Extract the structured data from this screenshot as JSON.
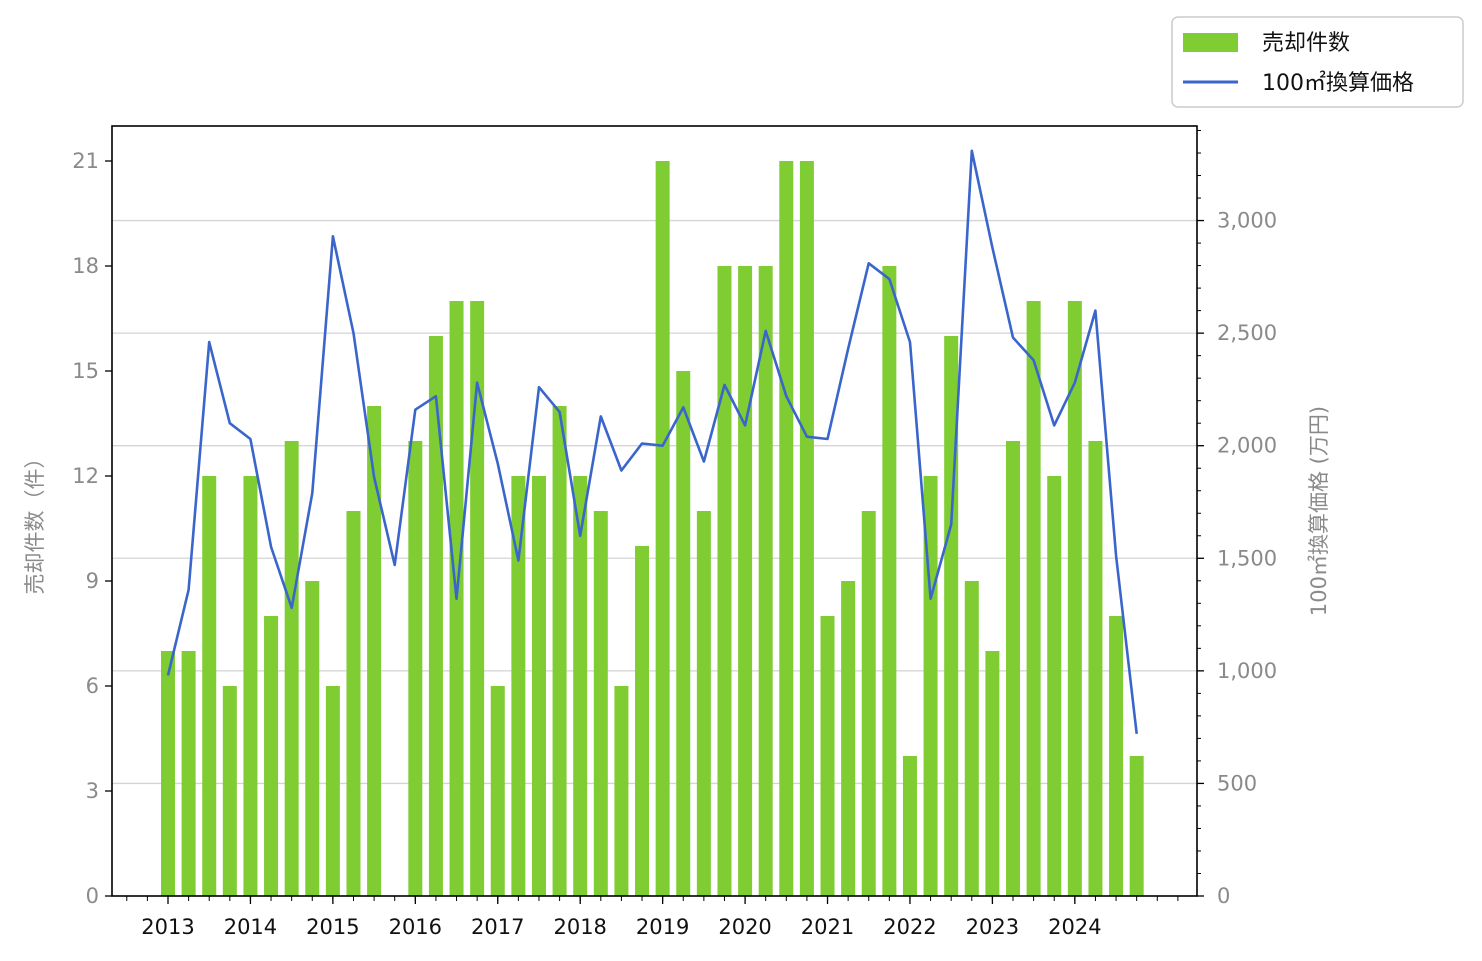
{
  "chart_data": {
    "type": "bar+line",
    "x_labels": [
      "2013",
      "2014",
      "2015",
      "2016",
      "2017",
      "2018",
      "2019",
      "2020",
      "2021",
      "2022",
      "2023",
      "2024"
    ],
    "periods": [
      "2013Q1",
      "2013Q2",
      "2013Q3",
      "2013Q4",
      "2014Q1",
      "2014Q2",
      "2014Q3",
      "2014Q4",
      "2015Q1",
      "2015Q2",
      "2015Q3",
      "2015Q4",
      "2016Q1",
      "2016Q2",
      "2016Q3",
      "2016Q4",
      "2017Q1",
      "2017Q2",
      "2017Q3",
      "2017Q4",
      "2018Q1",
      "2018Q2",
      "2018Q3",
      "2018Q4",
      "2019Q1",
      "2019Q2",
      "2019Q3",
      "2019Q4",
      "2020Q1",
      "2020Q2",
      "2020Q3",
      "2020Q4",
      "2021Q1",
      "2021Q2",
      "2021Q3",
      "2021Q4",
      "2022Q1",
      "2022Q2",
      "2022Q3",
      "2022Q4",
      "2023Q1",
      "2023Q2",
      "2023Q3",
      "2023Q4",
      "2024Q1",
      "2024Q2",
      "2024Q3",
      "2024Q4"
    ],
    "series": [
      {
        "name": "売却件数",
        "type": "bar",
        "axis": "left",
        "color": "#80cc33",
        "values": [
          7,
          7,
          12,
          6,
          12,
          8,
          13,
          9,
          6,
          11,
          14,
          null,
          13,
          16,
          17,
          17,
          6,
          12,
          12,
          14,
          12,
          11,
          6,
          10,
          21,
          15,
          11,
          18,
          18,
          18,
          21,
          21,
          8,
          9,
          11,
          18,
          4,
          12,
          16,
          9,
          7,
          13,
          17,
          12,
          17,
          13,
          8,
          4
        ]
      },
      {
        "name": "100㎡換算価格",
        "type": "line",
        "axis": "right",
        "color": "#3a66cc",
        "values": [
          980,
          1360,
          2460,
          2100,
          2030,
          1550,
          1280,
          1790,
          2930,
          2500,
          1860,
          1470,
          2160,
          2220,
          1320,
          2280,
          1920,
          1490,
          2260,
          2150,
          1600,
          2130,
          1890,
          2010,
          2000,
          2170,
          1930,
          2270,
          2090,
          2510,
          2220,
          2040,
          2030,
          2430,
          2810,
          2740,
          2460,
          1320,
          1650,
          3310,
          2880,
          2480,
          2380,
          2090,
          2280,
          2600,
          1510,
          720
        ]
      }
    ],
    "y_left": {
      "label": "売却件数（件）",
      "ticks": [
        "0",
        "3",
        "6",
        "9",
        "12",
        "15",
        "18",
        "21"
      ],
      "range": [
        0,
        22
      ]
    },
    "y_right": {
      "label": "100㎡換算価格 (万円)",
      "ticks": [
        "0",
        "500",
        "1,000",
        "1,500",
        "2,000",
        "2,500",
        "3,000"
      ],
      "range": [
        0,
        3420
      ]
    },
    "grid": "horizontal (right axis)",
    "legend": {
      "placement": "top-right",
      "entries": [
        "売却件数",
        "100㎡換算価格"
      ]
    }
  }
}
